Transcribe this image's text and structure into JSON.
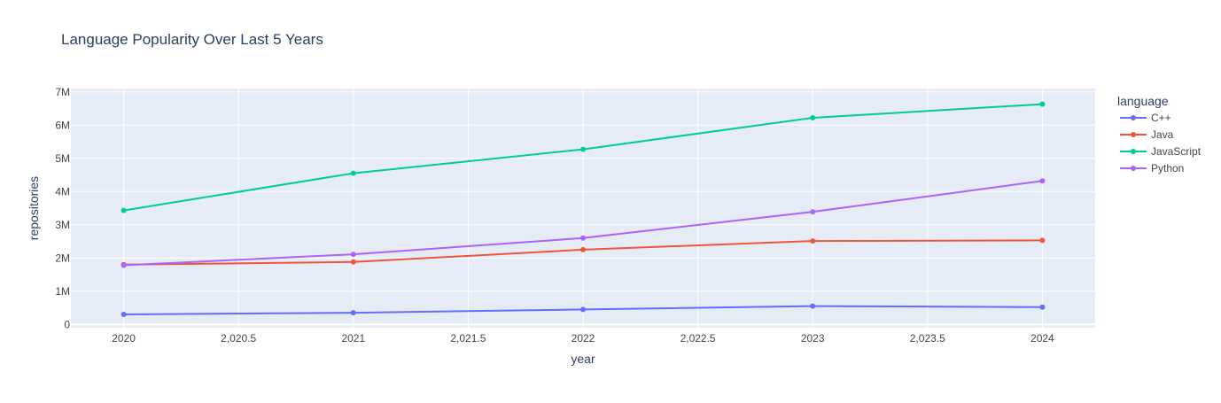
{
  "chart_data": {
    "type": "line",
    "title": "Language Popularity Over Last 5 Years",
    "xlabel": "year",
    "ylabel": "repositories",
    "legend_title": "language",
    "legend_position": "right",
    "grid": true,
    "xlim": [
      2019.77,
      2024.23
    ],
    "ylim": [
      -100000,
      7100000
    ],
    "x_ticks": [
      2020,
      2020.5,
      2021,
      2021.5,
      2022,
      2022.5,
      2023,
      2023.5,
      2024
    ],
    "x_tick_labels": [
      "2020",
      "2,020.5",
      "2021",
      "2,021.5",
      "2022",
      "2,022.5",
      "2023",
      "2,023.5",
      "2024"
    ],
    "y_ticks": [
      0,
      1000000,
      2000000,
      3000000,
      4000000,
      5000000,
      6000000,
      7000000
    ],
    "y_tick_labels": [
      "0",
      "1M",
      "2M",
      "3M",
      "4M",
      "5M",
      "6M",
      "7M"
    ],
    "x": [
      2020,
      2021,
      2022,
      2023,
      2024
    ],
    "series": [
      {
        "name": "C++",
        "color": "#636efa",
        "values": [
          300000,
          350000,
          450000,
          550000,
          520000
        ]
      },
      {
        "name": "Java",
        "color": "#EF553B",
        "values": [
          1800000,
          1880000,
          2250000,
          2510000,
          2530000
        ]
      },
      {
        "name": "JavaScript",
        "color": "#00cc96",
        "values": [
          3430000,
          4550000,
          5270000,
          6220000,
          6630000
        ]
      },
      {
        "name": "Python",
        "color": "#ab63fa",
        "values": [
          1780000,
          2110000,
          2600000,
          3390000,
          4320000
        ]
      }
    ],
    "colors": {
      "plot_background": "#e5ecf6",
      "grid": "#ffffff",
      "text": "#2a3f5f",
      "tick_text": "#444444"
    }
  }
}
